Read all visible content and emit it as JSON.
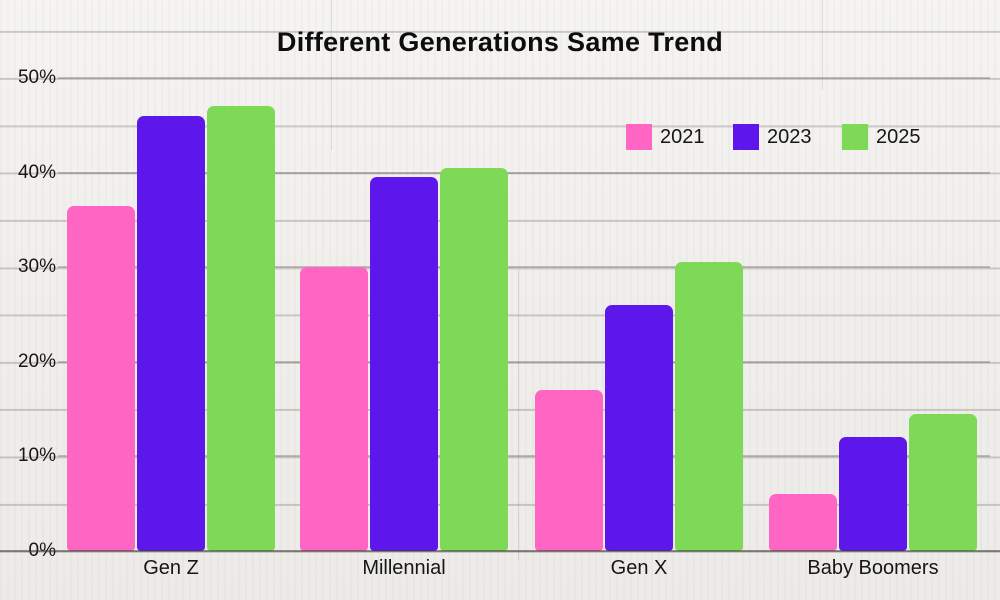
{
  "title": "Different Generations Same Trend",
  "y_axis": {
    "tick_labels": [
      "0%",
      "10%",
      "20%",
      "30%",
      "40%",
      "50%"
    ],
    "tick_values": [
      0,
      10,
      20,
      30,
      40,
      50
    ]
  },
  "legend": {
    "items": [
      {
        "label": "2021",
        "color": "#FF66C4"
      },
      {
        "label": "2023",
        "color": "#5E17EB"
      },
      {
        "label": "2025",
        "color": "#7ED957"
      }
    ]
  },
  "chart_data": {
    "type": "bar",
    "title": "Different Generations Same Trend",
    "categories": [
      "Gen Z",
      "Millennial",
      "Gen X",
      "Baby Boomers"
    ],
    "series": [
      {
        "name": "2021",
        "color": "#FF66C4",
        "values": [
          36.5,
          30,
          17,
          6
        ]
      },
      {
        "name": "2023",
        "color": "#5E17EB",
        "values": [
          46,
          39.5,
          26,
          12
        ]
      },
      {
        "name": "2025",
        "color": "#7ED957",
        "values": [
          47,
          40.5,
          30.5,
          14.5
        ]
      }
    ],
    "xlabel": "",
    "ylabel": "",
    "ylim": [
      0,
      50
    ],
    "y_tick_format": "percent",
    "grid": "horizontal",
    "legend_position": "upper-right",
    "background": "white-wood-planks",
    "colors": {
      "title_text": "#0d0d0d",
      "axis_text": "#161616",
      "background_base": "#f2f1ee"
    }
  }
}
